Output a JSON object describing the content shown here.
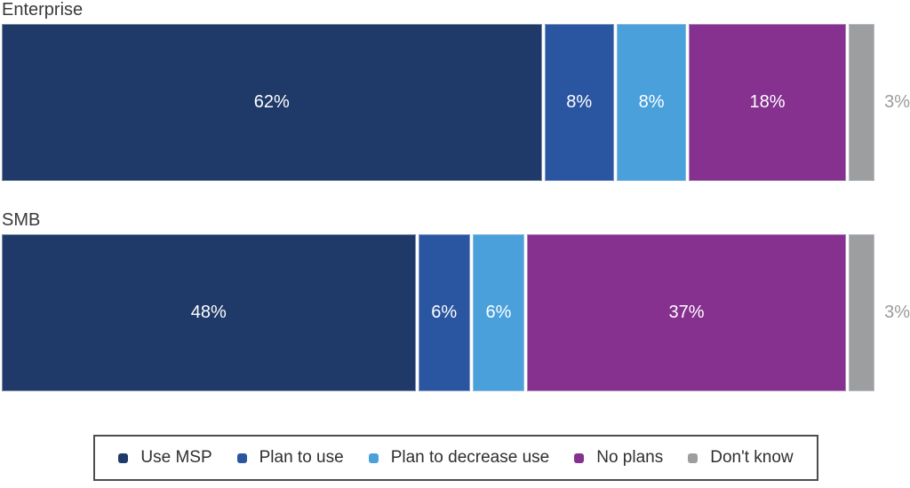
{
  "chart_data": {
    "type": "bar",
    "orientation": "horizontal",
    "stacked": true,
    "normalized_to_full_width": true,
    "unit": "%",
    "categories": [
      "Enterprise",
      "SMB"
    ],
    "series": [
      {
        "name": "Use MSP",
        "color": "#1F3A68",
        "values": [
          62,
          48
        ],
        "labels": [
          "62%",
          "48%"
        ],
        "label_position": "inside"
      },
      {
        "name": "Plan to use",
        "color": "#2A55A0",
        "values": [
          8,
          6
        ],
        "labels": [
          "8%",
          "6%"
        ],
        "label_position": "inside"
      },
      {
        "name": "Plan to decrease use",
        "color": "#4AA0DB",
        "values": [
          8,
          6
        ],
        "labels": [
          "8%",
          "6%"
        ],
        "label_position": "inside"
      },
      {
        "name": "No plans",
        "color": "#86308F",
        "values": [
          18,
          37
        ],
        "labels": [
          "18%",
          "37%"
        ],
        "label_position": "inside"
      },
      {
        "name": "Don't know",
        "color": "#9D9EA0",
        "values": [
          3,
          3
        ],
        "labels": [
          "3%",
          "3%"
        ],
        "label_position": "outside"
      }
    ],
    "legend": {
      "position": "bottom",
      "entries": [
        "Use MSP",
        "Plan to use",
        "Plan to decrease use",
        "No plans",
        "Don't know"
      ]
    },
    "axes": {
      "visible": false
    },
    "grid": false
  },
  "colors": {
    "background": "#FFFFFF",
    "category_label": "#3A3A3A",
    "inside_value_label": "#FFFFFF",
    "outside_value_label": "#9B9B9B",
    "segment_gap": "#FFFFFF",
    "legend_text": "#2F2F2F",
    "legend_border": "#4D4D4D"
  }
}
